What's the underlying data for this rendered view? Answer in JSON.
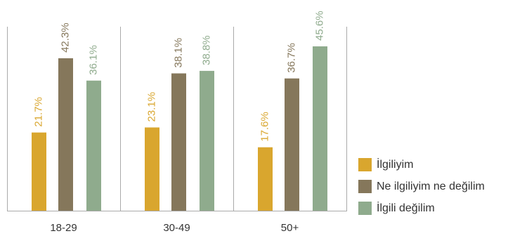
{
  "chart_data": {
    "type": "bar",
    "categories": [
      "18-29",
      "30-49",
      "50+"
    ],
    "series": [
      {
        "name": "İlgiliyim",
        "color": "#D9A62E",
        "values": [
          21.7,
          23.1,
          17.6
        ],
        "labels": [
          "21.7%",
          "23.1%",
          "17.6%"
        ]
      },
      {
        "name": "Ne ilgiliyim ne değilim",
        "color": "#85775B",
        "values": [
          42.3,
          38.1,
          36.7
        ],
        "labels": [
          "42.3%",
          "38.1%",
          "36.7%"
        ]
      },
      {
        "name": "İlgili değilim",
        "color": "#8FAB8D",
        "values": [
          36.1,
          38.8,
          45.6
        ],
        "labels": [
          "36.1%",
          "38.8%",
          "45.6%"
        ]
      }
    ],
    "title": "",
    "xlabel": "",
    "ylabel": "",
    "ylim": [
      0,
      50
    ],
    "grid": false,
    "legend_position": "right"
  }
}
